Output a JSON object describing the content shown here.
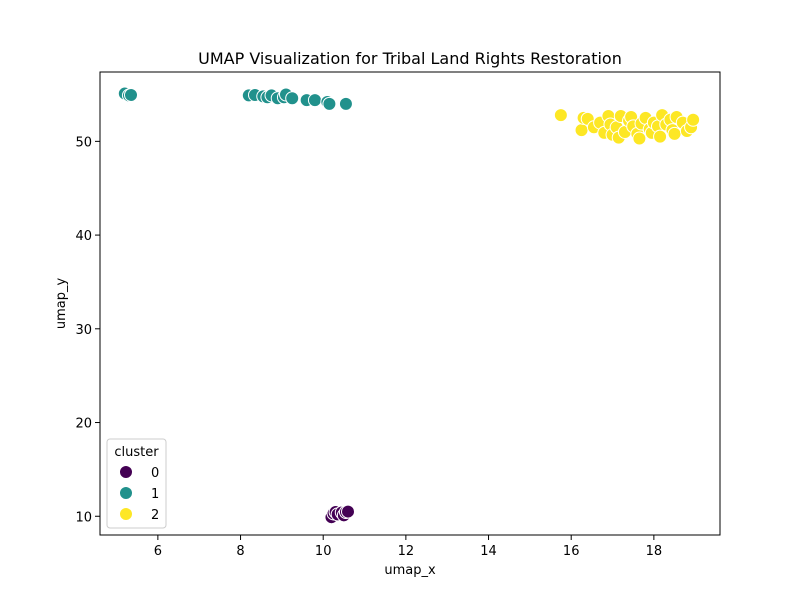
{
  "chart_data": {
    "type": "scatter",
    "title": "UMAP Visualization for Tribal Land Rights Restoration",
    "xlabel": "umap_x",
    "ylabel": "umap_y",
    "xlim": [
      4.6,
      19.6
    ],
    "ylim": [
      8.0,
      57.4
    ],
    "xticks": [
      6,
      8,
      10,
      12,
      14,
      16,
      18
    ],
    "yticks": [
      10,
      20,
      30,
      40,
      50
    ],
    "grid": false,
    "legend": {
      "title": "cluster",
      "position": "lower-left"
    },
    "marker_edge_color": "#ffffff",
    "series": [
      {
        "name": "0",
        "color": "#440154",
        "points": [
          {
            "x": 10.2,
            "y": 9.9
          },
          {
            "x": 10.25,
            "y": 10.3
          },
          {
            "x": 10.3,
            "y": 10.45
          },
          {
            "x": 10.35,
            "y": 10.2
          },
          {
            "x": 10.45,
            "y": 10.4
          },
          {
            "x": 10.5,
            "y": 10.1
          },
          {
            "x": 10.55,
            "y": 10.45
          },
          {
            "x": 10.6,
            "y": 10.5
          }
        ]
      },
      {
        "name": "1",
        "color": "#21918c",
        "points": [
          {
            "x": 5.2,
            "y": 55.1
          },
          {
            "x": 5.3,
            "y": 54.9
          },
          {
            "x": 5.35,
            "y": 54.95
          },
          {
            "x": 8.2,
            "y": 54.9
          },
          {
            "x": 8.35,
            "y": 54.95
          },
          {
            "x": 8.55,
            "y": 54.8
          },
          {
            "x": 8.65,
            "y": 54.7
          },
          {
            "x": 8.75,
            "y": 54.9
          },
          {
            "x": 8.9,
            "y": 54.6
          },
          {
            "x": 9.05,
            "y": 54.7
          },
          {
            "x": 9.1,
            "y": 55.0
          },
          {
            "x": 9.25,
            "y": 54.6
          },
          {
            "x": 9.6,
            "y": 54.4
          },
          {
            "x": 9.8,
            "y": 54.4
          },
          {
            "x": 10.1,
            "y": 54.2
          },
          {
            "x": 10.15,
            "y": 54.0
          },
          {
            "x": 10.55,
            "y": 54.0
          }
        ]
      },
      {
        "name": "2",
        "color": "#fde725",
        "points": [
          {
            "x": 15.75,
            "y": 52.8
          },
          {
            "x": 16.25,
            "y": 51.2
          },
          {
            "x": 16.3,
            "y": 52.5
          },
          {
            "x": 16.4,
            "y": 52.4
          },
          {
            "x": 16.55,
            "y": 51.5
          },
          {
            "x": 16.7,
            "y": 52.0
          },
          {
            "x": 16.8,
            "y": 50.9
          },
          {
            "x": 16.9,
            "y": 52.7
          },
          {
            "x": 16.95,
            "y": 51.8
          },
          {
            "x": 17.0,
            "y": 50.7
          },
          {
            "x": 17.1,
            "y": 51.5
          },
          {
            "x": 17.15,
            "y": 50.4
          },
          {
            "x": 17.2,
            "y": 52.7
          },
          {
            "x": 17.3,
            "y": 51.0
          },
          {
            "x": 17.4,
            "y": 52.2
          },
          {
            "x": 17.45,
            "y": 52.6
          },
          {
            "x": 17.5,
            "y": 51.6
          },
          {
            "x": 17.6,
            "y": 50.8
          },
          {
            "x": 17.65,
            "y": 50.3
          },
          {
            "x": 17.7,
            "y": 51.9
          },
          {
            "x": 17.8,
            "y": 52.5
          },
          {
            "x": 17.9,
            "y": 51.3
          },
          {
            "x": 17.95,
            "y": 50.9
          },
          {
            "x": 18.0,
            "y": 52.0
          },
          {
            "x": 18.1,
            "y": 51.6
          },
          {
            "x": 18.15,
            "y": 50.5
          },
          {
            "x": 18.2,
            "y": 52.8
          },
          {
            "x": 18.3,
            "y": 51.8
          },
          {
            "x": 18.4,
            "y": 52.3
          },
          {
            "x": 18.45,
            "y": 51.2
          },
          {
            "x": 18.5,
            "y": 50.8
          },
          {
            "x": 18.55,
            "y": 52.6
          },
          {
            "x": 18.7,
            "y": 52.0
          },
          {
            "x": 18.8,
            "y": 51.1
          },
          {
            "x": 18.9,
            "y": 51.5
          },
          {
            "x": 18.95,
            "y": 52.3
          }
        ]
      }
    ]
  }
}
